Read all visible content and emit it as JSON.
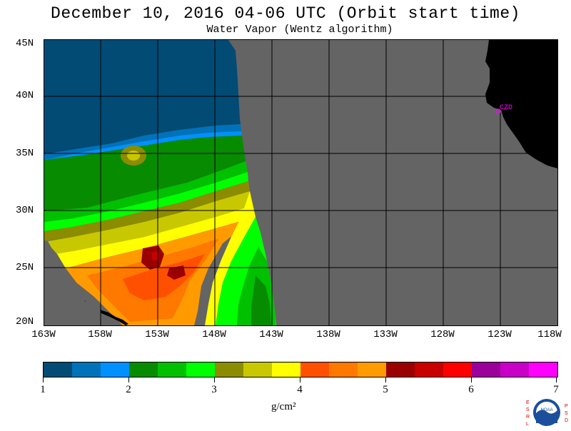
{
  "header": {
    "title": "December 10, 2016  04-06 UTC  (Orbit start time)",
    "subtitle": "Water Vapor (Wentz algorithm)"
  },
  "map": {
    "lat_labels": [
      "45N",
      "40N",
      "35N",
      "30N",
      "25N",
      "20N"
    ],
    "lon_labels": [
      "163W",
      "158W",
      "153W",
      "148W",
      "143W",
      "138W",
      "133W",
      "128W",
      "123W",
      "118W"
    ],
    "station_label": "CZD",
    "colors": {
      "no_data": "#646464",
      "land": "#000000",
      "gridline": "#000000",
      "station": "#ff00ff"
    }
  },
  "colorbar": {
    "tick_labels": [
      "1",
      "2",
      "3",
      "4",
      "5",
      "6",
      "7"
    ],
    "units": "g/cm²",
    "colors": [
      "#024b75",
      "#0072b9",
      "#0090ff",
      "#078b00",
      "#00c000",
      "#00ff00",
      "#8c8c00",
      "#c8c800",
      "#ffff00",
      "#ff5000",
      "#ff7800",
      "#ff9b00",
      "#9b0000",
      "#c80000",
      "#ff0000",
      "#9b009b",
      "#c800c8",
      "#ff00ff"
    ]
  },
  "logo": {
    "left_letters": "ESRL",
    "right_letters": "PSD",
    "seal_text": "NOAA"
  }
}
